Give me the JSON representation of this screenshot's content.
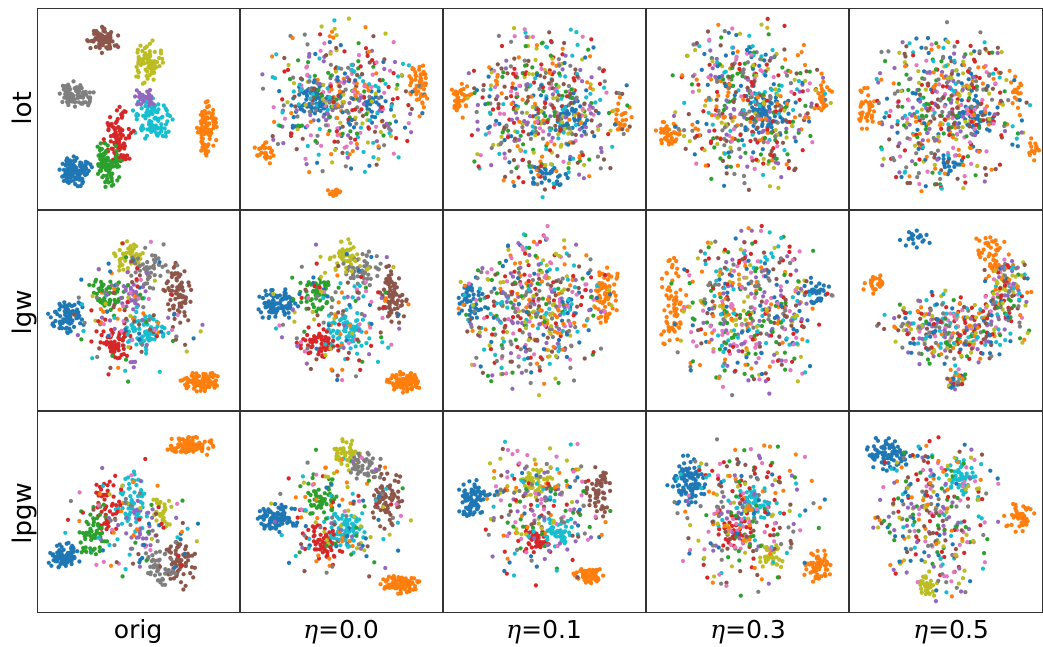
{
  "chart_data": {
    "type": "scatter",
    "layout": "grid",
    "rows": [
      "lot",
      "lgw",
      "lpgw"
    ],
    "columns": [
      {
        "prefix": "",
        "symbol": "",
        "value": "orig"
      },
      {
        "prefix": "",
        "symbol": "η",
        "value": "=0.0"
      },
      {
        "prefix": "",
        "symbol": "η",
        "value": "=0.1"
      },
      {
        "prefix": "",
        "symbol": "η",
        "value": "=0.3"
      },
      {
        "prefix": "",
        "symbol": "η",
        "value": "=0.5"
      }
    ],
    "class_colors": [
      "#1f77b4",
      "#ff7f0e",
      "#2ca02c",
      "#d62728",
      "#9467bd",
      "#8c564b",
      "#e377c2",
      "#7f7f7f",
      "#bcbd22",
      "#17becf"
    ],
    "panel_range": {
      "x": [
        0,
        100
      ],
      "y": [
        0,
        100
      ]
    },
    "axes_ticks": false,
    "grid": false,
    "legend": "none",
    "marker": "dot",
    "panels": [
      [
        {
          "clusters": [
            {
              "c": 0,
              "x": 18,
              "y": 18,
              "rx": 9,
              "ry": 7,
              "n": 110
            },
            {
              "c": 5,
              "x": 32,
              "y": 86,
              "rx": 8,
              "ry": 7,
              "n": 85
            },
            {
              "c": 8,
              "x": 55,
              "y": 74,
              "rx": 7,
              "ry": 11,
              "n": 75
            },
            {
              "c": 7,
              "x": 18,
              "y": 57,
              "rx": 9,
              "ry": 7,
              "n": 80
            },
            {
              "c": 9,
              "x": 57,
              "y": 44,
              "rx": 10,
              "ry": 12,
              "n": 95
            },
            {
              "c": 3,
              "x": 40,
              "y": 35,
              "rx": 7,
              "ry": 16,
              "n": 90
            },
            {
              "c": 2,
              "x": 34,
              "y": 21,
              "rx": 7,
              "ry": 11,
              "n": 85
            },
            {
              "c": 1,
              "x": 85,
              "y": 40,
              "rx": 5,
              "ry": 15,
              "n": 90
            },
            {
              "c": 4,
              "x": 53,
              "y": 55,
              "rx": 6,
              "ry": 6,
              "n": 30
            }
          ]
        },
        {
          "clusters": [
            {
              "c": 0,
              "x": 35,
              "y": 55,
              "rx": 11,
              "ry": 10,
              "n": 70
            },
            {
              "c": 1,
              "x": 90,
              "y": 63,
              "rx": 5,
              "ry": 12,
              "n": 50
            },
            {
              "c": 1,
              "x": 10,
              "y": 27,
              "rx": 5,
              "ry": 6,
              "n": 25
            },
            {
              "c": 1,
              "x": 46,
              "y": 7,
              "rx": 4,
              "ry": 2,
              "n": 15
            },
            {
              "c": 0,
              "x": 66,
              "y": 52,
              "rx": 5,
              "ry": 8,
              "n": 25
            },
            {
              "c": -1,
              "x": 50,
              "y": 55,
              "rx": 38,
              "ry": 38,
              "n": 430
            }
          ]
        },
        {
          "clusters": [
            {
              "c": 1,
              "x": 7,
              "y": 55,
              "rx": 5,
              "ry": 9,
              "n": 40
            },
            {
              "c": 1,
              "x": 90,
              "y": 46,
              "rx": 5,
              "ry": 8,
              "n": 25
            },
            {
              "c": 0,
              "x": 63,
              "y": 46,
              "rx": 9,
              "ry": 9,
              "n": 45
            },
            {
              "c": 0,
              "x": 52,
              "y": 16,
              "rx": 9,
              "ry": 6,
              "n": 30
            },
            {
              "c": -1,
              "x": 50,
              "y": 50,
              "rx": 40,
              "ry": 40,
              "n": 520
            }
          ]
        },
        {
          "clusters": [
            {
              "c": 1,
              "x": 10,
              "y": 37,
              "rx": 7,
              "ry": 7,
              "n": 40
            },
            {
              "c": 1,
              "x": 89,
              "y": 58,
              "rx": 4,
              "ry": 8,
              "n": 25
            },
            {
              "c": 0,
              "x": 58,
              "y": 47,
              "rx": 12,
              "ry": 10,
              "n": 60
            },
            {
              "c": -1,
              "x": 52,
              "y": 52,
              "rx": 38,
              "ry": 40,
              "n": 520
            }
          ]
        },
        {
          "clusters": [
            {
              "c": 1,
              "x": 7,
              "y": 50,
              "rx": 5,
              "ry": 10,
              "n": 35
            },
            {
              "c": 1,
              "x": 88,
              "y": 58,
              "rx": 4,
              "ry": 8,
              "n": 20
            },
            {
              "c": 1,
              "x": 97,
              "y": 30,
              "rx": 3,
              "ry": 6,
              "n": 15
            },
            {
              "c": 0,
              "x": 65,
              "y": 46,
              "rx": 10,
              "ry": 10,
              "n": 55
            },
            {
              "c": 0,
              "x": 52,
              "y": 22,
              "rx": 6,
              "ry": 6,
              "n": 20
            },
            {
              "c": -1,
              "x": 50,
              "y": 50,
              "rx": 40,
              "ry": 40,
              "n": 520
            }
          ]
        }
      ],
      [
        {
          "clusters": [
            {
              "c": 0,
              "x": 13,
              "y": 47,
              "rx": 9,
              "ry": 8,
              "n": 85
            },
            {
              "c": 1,
              "x": 82,
              "y": 13,
              "rx": 10,
              "ry": 5,
              "n": 100
            },
            {
              "c": 9,
              "x": 52,
              "y": 40,
              "rx": 12,
              "ry": 11,
              "n": 75
            },
            {
              "c": 3,
              "x": 37,
              "y": 33,
              "rx": 10,
              "ry": 9,
              "n": 60
            },
            {
              "c": 5,
              "x": 70,
              "y": 58,
              "rx": 7,
              "ry": 16,
              "n": 70
            },
            {
              "c": 8,
              "x": 45,
              "y": 78,
              "rx": 8,
              "ry": 9,
              "n": 50
            },
            {
              "c": 7,
              "x": 55,
              "y": 72,
              "rx": 9,
              "ry": 10,
              "n": 45
            },
            {
              "c": 2,
              "x": 33,
              "y": 58,
              "rx": 9,
              "ry": 10,
              "n": 50
            },
            {
              "c": 4,
              "x": 47,
              "y": 58,
              "rx": 7,
              "ry": 7,
              "n": 25
            },
            {
              "c": -1,
              "x": 48,
              "y": 50,
              "rx": 32,
              "ry": 35,
              "n": 150
            }
          ]
        },
        {
          "clusters": [
            {
              "c": 0,
              "x": 17,
              "y": 53,
              "rx": 10,
              "ry": 8,
              "n": 90
            },
            {
              "c": 1,
              "x": 82,
              "y": 13,
              "rx": 9,
              "ry": 5,
              "n": 95
            },
            {
              "c": 9,
              "x": 52,
              "y": 40,
              "rx": 12,
              "ry": 11,
              "n": 75
            },
            {
              "c": 3,
              "x": 38,
              "y": 33,
              "rx": 10,
              "ry": 9,
              "n": 55
            },
            {
              "c": 5,
              "x": 76,
              "y": 56,
              "rx": 7,
              "ry": 16,
              "n": 70
            },
            {
              "c": 8,
              "x": 52,
              "y": 78,
              "rx": 8,
              "ry": 9,
              "n": 50
            },
            {
              "c": 7,
              "x": 60,
              "y": 72,
              "rx": 9,
              "ry": 10,
              "n": 45
            },
            {
              "c": 2,
              "x": 37,
              "y": 60,
              "rx": 9,
              "ry": 10,
              "n": 50
            },
            {
              "c": -1,
              "x": 50,
              "y": 50,
              "rx": 32,
              "ry": 35,
              "n": 160
            }
          ]
        },
        {
          "clusters": [
            {
              "c": 1,
              "x": 82,
              "y": 58,
              "rx": 7,
              "ry": 14,
              "n": 70
            },
            {
              "c": 0,
              "x": 12,
              "y": 54,
              "rx": 7,
              "ry": 10,
              "n": 50
            },
            {
              "c": -1,
              "x": 45,
              "y": 50,
              "rx": 36,
              "ry": 40,
              "n": 520
            }
          ]
        },
        {
          "clusters": [
            {
              "c": 1,
              "x": 12,
              "y": 52,
              "rx": 7,
              "ry": 24,
              "n": 70
            },
            {
              "c": 0,
              "x": 85,
              "y": 60,
              "rx": 7,
              "ry": 7,
              "n": 35
            },
            {
              "c": -1,
              "x": 52,
              "y": 50,
              "rx": 38,
              "ry": 40,
              "n": 500
            }
          ]
        },
        {
          "clusters": [
            {
              "c": 1,
              "x": 73,
              "y": 78,
              "rx": 10,
              "ry": 12,
              "n": 55
            },
            {
              "c": 1,
              "x": 12,
              "y": 64,
              "rx": 7,
              "ry": 6,
              "n": 25
            },
            {
              "c": 0,
              "x": 34,
              "y": 88,
              "rx": 8,
              "ry": 6,
              "n": 20
            },
            {
              "c": -1,
              "x": 55,
              "y": 40,
              "rx": 38,
              "ry": 18,
              "n": 330
            },
            {
              "c": -1,
              "x": 83,
              "y": 62,
              "rx": 13,
              "ry": 18,
              "n": 130
            },
            {
              "c": -1,
              "x": 55,
              "y": 15,
              "rx": 6,
              "ry": 6,
              "n": 35
            }
          ]
        }
      ],
      [
        {
          "clusters": [
            {
              "c": 1,
              "x": 77,
              "y": 84,
              "rx": 12,
              "ry": 5,
              "n": 95
            },
            {
              "c": 0,
              "x": 12,
              "y": 27,
              "rx": 9,
              "ry": 7,
              "n": 80
            },
            {
              "c": 9,
              "x": 47,
              "y": 55,
              "rx": 8,
              "ry": 14,
              "n": 60
            },
            {
              "c": 3,
              "x": 34,
              "y": 55,
              "rx": 7,
              "ry": 16,
              "n": 50
            },
            {
              "c": 5,
              "x": 72,
              "y": 23,
              "rx": 9,
              "ry": 12,
              "n": 60
            },
            {
              "c": 7,
              "x": 60,
              "y": 22,
              "rx": 9,
              "ry": 10,
              "n": 45
            },
            {
              "c": 8,
              "x": 62,
              "y": 50,
              "rx": 4,
              "ry": 10,
              "n": 30
            },
            {
              "c": 2,
              "x": 28,
              "y": 40,
              "rx": 8,
              "ry": 16,
              "n": 55
            },
            {
              "c": 4,
              "x": 50,
              "y": 40,
              "rx": 8,
              "ry": 10,
              "n": 25
            },
            {
              "c": -1,
              "x": 48,
              "y": 45,
              "rx": 32,
              "ry": 32,
              "n": 110
            }
          ]
        },
        {
          "clusters": [
            {
              "c": 0,
              "x": 17,
              "y": 47,
              "rx": 10,
              "ry": 7,
              "n": 90
            },
            {
              "c": 1,
              "x": 80,
              "y": 13,
              "rx": 9,
              "ry": 5,
              "n": 95
            },
            {
              "c": 9,
              "x": 52,
              "y": 42,
              "rx": 11,
              "ry": 10,
              "n": 70
            },
            {
              "c": 3,
              "x": 40,
              "y": 34,
              "rx": 10,
              "ry": 10,
              "n": 55
            },
            {
              "c": 5,
              "x": 73,
              "y": 57,
              "rx": 8,
              "ry": 16,
              "n": 70
            },
            {
              "c": 8,
              "x": 53,
              "y": 80,
              "rx": 8,
              "ry": 8,
              "n": 45
            },
            {
              "c": 7,
              "x": 62,
              "y": 74,
              "rx": 9,
              "ry": 10,
              "n": 45
            },
            {
              "c": 2,
              "x": 40,
              "y": 58,
              "rx": 9,
              "ry": 10,
              "n": 50
            },
            {
              "c": -1,
              "x": 50,
              "y": 50,
              "rx": 32,
              "ry": 35,
              "n": 150
            }
          ]
        },
        {
          "clusters": [
            {
              "c": 0,
              "x": 13,
              "y": 57,
              "rx": 8,
              "ry": 9,
              "n": 80
            },
            {
              "c": 1,
              "x": 73,
              "y": 17,
              "rx": 8,
              "ry": 4,
              "n": 55
            },
            {
              "c": 8,
              "x": 45,
              "y": 65,
              "rx": 8,
              "ry": 8,
              "n": 45
            },
            {
              "c": 3,
              "x": 45,
              "y": 36,
              "rx": 9,
              "ry": 7,
              "n": 45
            },
            {
              "c": 9,
              "x": 57,
              "y": 40,
              "rx": 9,
              "ry": 8,
              "n": 45
            },
            {
              "c": 5,
              "x": 78,
              "y": 60,
              "rx": 7,
              "ry": 14,
              "n": 55
            },
            {
              "c": -1,
              "x": 48,
              "y": 52,
              "rx": 34,
              "ry": 36,
              "n": 240
            }
          ]
        },
        {
          "clusters": [
            {
              "c": 0,
              "x": 20,
              "y": 65,
              "rx": 10,
              "ry": 13,
              "n": 90
            },
            {
              "c": 1,
              "x": 86,
              "y": 22,
              "rx": 7,
              "ry": 9,
              "n": 55
            },
            {
              "c": 9,
              "x": 52,
              "y": 55,
              "rx": 9,
              "ry": 10,
              "n": 55
            },
            {
              "c": 3,
              "x": 42,
              "y": 40,
              "rx": 9,
              "ry": 8,
              "n": 40
            },
            {
              "c": 8,
              "x": 62,
              "y": 28,
              "rx": 6,
              "ry": 8,
              "n": 35
            },
            {
              "c": -1,
              "x": 50,
              "y": 50,
              "rx": 36,
              "ry": 38,
              "n": 300
            }
          ]
        },
        {
          "clusters": [
            {
              "c": 0,
              "x": 18,
              "y": 80,
              "rx": 12,
              "ry": 8,
              "n": 85
            },
            {
              "c": 1,
              "x": 90,
              "y": 47,
              "rx": 8,
              "ry": 7,
              "n": 45
            },
            {
              "c": 9,
              "x": 57,
              "y": 68,
              "rx": 8,
              "ry": 9,
              "n": 50
            },
            {
              "c": 8,
              "x": 40,
              "y": 12,
              "rx": 5,
              "ry": 7,
              "n": 30
            },
            {
              "c": -1,
              "x": 45,
              "y": 48,
              "rx": 32,
              "ry": 40,
              "n": 320
            }
          ]
        }
      ]
    ]
  }
}
